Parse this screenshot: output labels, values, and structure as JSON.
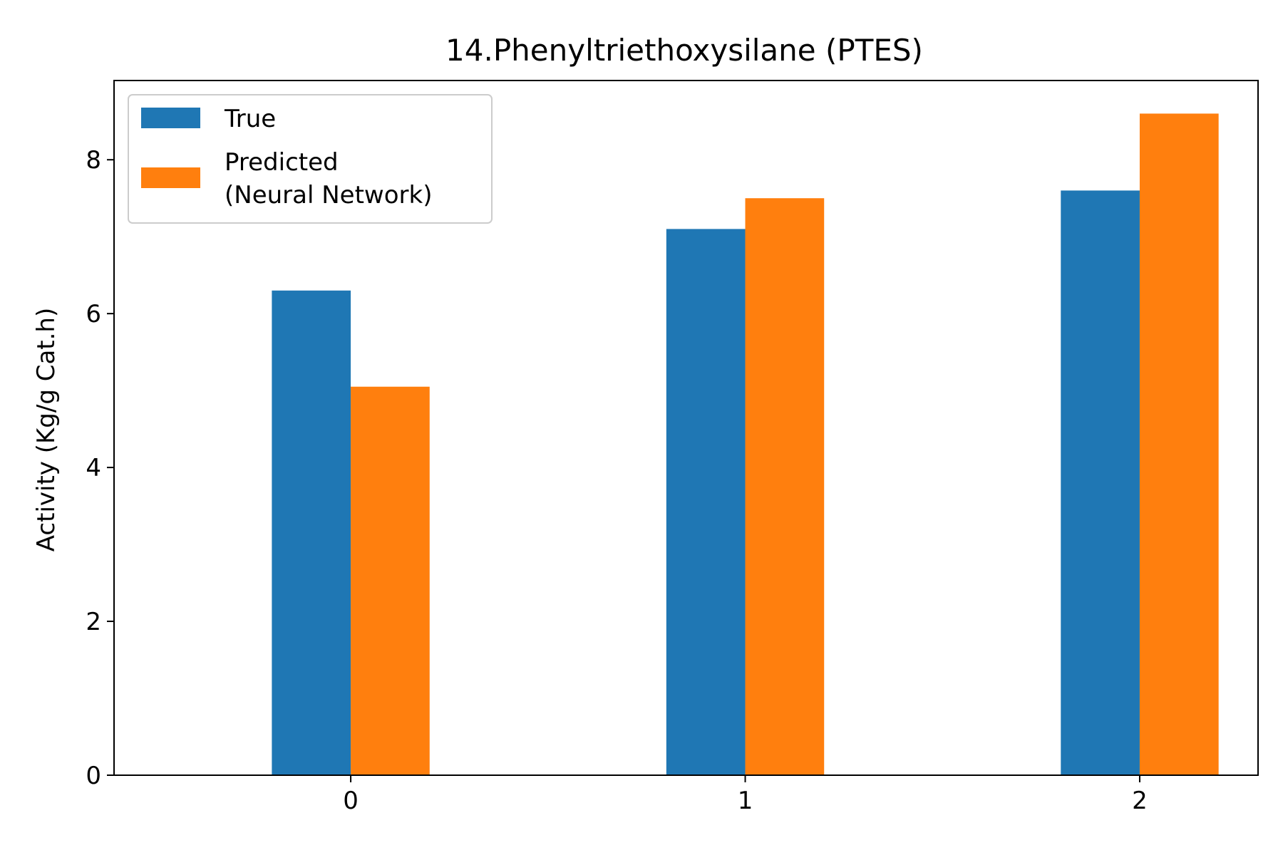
{
  "chart_data": {
    "type": "bar",
    "title": "14.Phenyltriethoxysilane (PTES)",
    "xlabel": "",
    "ylabel": "Activity (Kg/g Cat.h)",
    "categories": [
      "0",
      "1",
      "2"
    ],
    "series": [
      {
        "name": "True",
        "values": [
          6.3,
          7.1,
          7.6
        ],
        "color": "#1f77b4"
      },
      {
        "name": "Predicted\n(Neural Network)",
        "values": [
          5.05,
          7.5,
          8.6
        ],
        "color": "#ff7f0e"
      }
    ],
    "ylim": [
      0,
      9.03
    ],
    "yticks": [
      0,
      2,
      4,
      6,
      8
    ],
    "xlim": [
      -0.6,
      2.3
    ],
    "grid": false,
    "legend": "top-left"
  }
}
